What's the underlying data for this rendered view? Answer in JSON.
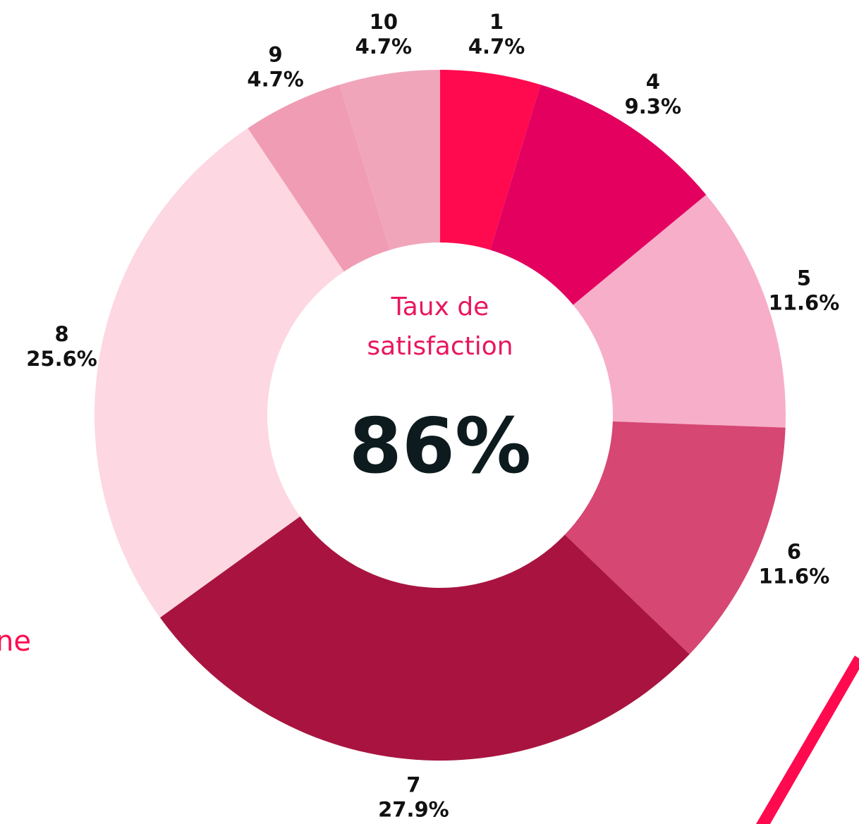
{
  "chart_data": {
    "type": "donut",
    "categories": [
      "1",
      "4",
      "5",
      "6",
      "7",
      "8",
      "9",
      "10"
    ],
    "values": [
      4.7,
      9.3,
      11.6,
      11.6,
      27.9,
      25.6,
      4.7,
      4.7
    ],
    "value_labels": [
      "4.7%",
      "9.3%",
      "11.6%",
      "11.6%",
      "27.9%",
      "25.6%",
      "4.7%",
      "4.7%"
    ],
    "colors": [
      "#ff0a4f",
      "#e3005f",
      "#f7aec9",
      "#d64773",
      "#a8143f",
      "#fdd7e1",
      "#f09cb4",
      "#f0a5bb"
    ],
    "center_label": [
      "Taux de",
      "satisfaction"
    ],
    "center_value": "86%"
  },
  "side_text": "ne"
}
